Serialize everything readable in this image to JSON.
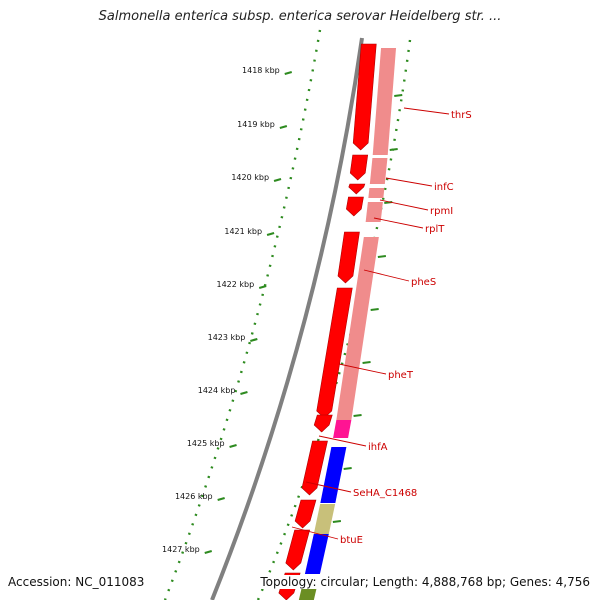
{
  "title": "Salmonella enterica subsp. enterica serovar Heidelberg str. ...",
  "footer": {
    "accession": "Accession: NC_011083",
    "summary": "Topology: circular; Length: 4,888,768 bp; Genes: 4,756"
  },
  "ticks": [
    "1418 kbp",
    "1419 kbp",
    "1420 kbp",
    "1421 kbp",
    "1422 kbp",
    "1423 kbp",
    "1424 kbp",
    "1425 kbp",
    "1426 kbp",
    "1427 kbp"
  ],
  "genes": [
    "thrS",
    "infC",
    "rpmI",
    "rplT",
    "pheS",
    "pheT",
    "ihfA",
    "SeHA_C1468",
    "btuE"
  ],
  "colors": {
    "cds": "#ff0000",
    "cds_light": "#f08c8c",
    "pink": "#ff1493",
    "blue": "#0000ff",
    "khaki": "#c8c07a",
    "olive": "#6b8e23",
    "tick": "#2e8b20",
    "backbone": "#808080",
    "label": "#cc0000"
  }
}
